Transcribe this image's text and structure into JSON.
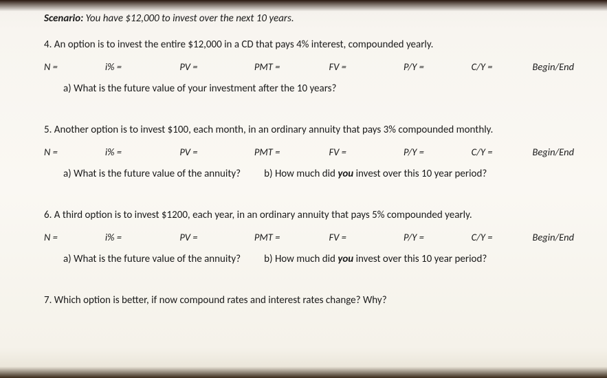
{
  "scenario": {
    "label": "Scenario:",
    "text": "You have $12,000 to invest over the next 10 years."
  },
  "vars": {
    "n": "N =",
    "i": "i% =",
    "pv": "PV =",
    "pmt": "PMT =",
    "fv": "FV =",
    "py": "P/Y =",
    "cy": "C/Y =",
    "be": "Begin/End"
  },
  "q4": {
    "text": "4. An option is to invest the entire $12,000 in a CD that pays 4% interest, compounded yearly.",
    "a": "a)  What is the future value of your investment after the 10 years?"
  },
  "q5": {
    "text": "5. Another option is to invest $100, each month, in an ordinary annuity that pays 3% compounded monthly.",
    "a": "a)  What is the future value of the annuity?",
    "b_pre": "b)  How much did ",
    "b_you": "you",
    "b_post": " invest over this 10 year period?"
  },
  "q6": {
    "text": "6. A third option is to invest $1200, each year, in an ordinary annuity that pays 5% compounded yearly.",
    "a": "a)  What is the future value of the annuity?",
    "b_pre": "b)  How much did ",
    "b_you": "you",
    "b_post": " invest over this 10 year period?"
  },
  "q7": {
    "text": "7.  Which option is better, if now compound rates and interest rates change?  Why?"
  }
}
